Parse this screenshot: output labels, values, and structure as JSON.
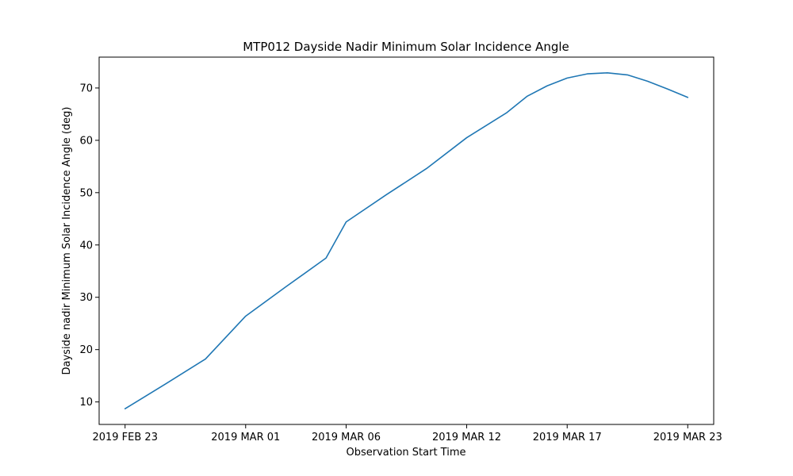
{
  "chart_data": {
    "type": "line",
    "title": "MTP012 Dayside Nadir Minimum Solar Incidence Angle",
    "xlabel": "Observation Start Time",
    "ylabel": "Dayside nadir Minimum Solar Incidence Angle (deg)",
    "x_ticks": [
      {
        "date": "2019-02-23",
        "label": "2019 FEB 23"
      },
      {
        "date": "2019-03-01",
        "label": "2019 MAR 01"
      },
      {
        "date": "2019-03-06",
        "label": "2019 MAR 06"
      },
      {
        "date": "2019-03-12",
        "label": "2019 MAR 12"
      },
      {
        "date": "2019-03-17",
        "label": "2019 MAR 17"
      },
      {
        "date": "2019-03-23",
        "label": "2019 MAR 23"
      }
    ],
    "xlim": [
      "2019-02-21T17:00",
      "2019-03-24T07:00"
    ],
    "y_ticks": [
      10,
      20,
      30,
      40,
      50,
      60,
      70
    ],
    "ylim": [
      5.7,
      75.9
    ],
    "grid": false,
    "series": [
      {
        "color": "#1f77b4",
        "points": [
          [
            "2019-02-23",
            8.7
          ],
          [
            "2019-02-25",
            13.4
          ],
          [
            "2019-02-27",
            18.2
          ],
          [
            "2019-03-01",
            26.4
          ],
          [
            "2019-03-03",
            32.0
          ],
          [
            "2019-03-05",
            37.5
          ],
          [
            "2019-03-06",
            44.4
          ],
          [
            "2019-03-08",
            49.6
          ],
          [
            "2019-03-10",
            54.6
          ],
          [
            "2019-03-12",
            60.5
          ],
          [
            "2019-03-14",
            65.3
          ],
          [
            "2019-03-15",
            68.4
          ],
          [
            "2019-03-16",
            70.4
          ],
          [
            "2019-03-17",
            71.9
          ],
          [
            "2019-03-18",
            72.7
          ],
          [
            "2019-03-19",
            72.9
          ],
          [
            "2019-03-20",
            72.5
          ],
          [
            "2019-03-21",
            71.3
          ],
          [
            "2019-03-22",
            69.8
          ],
          [
            "2019-03-23",
            68.2
          ]
        ]
      }
    ]
  }
}
